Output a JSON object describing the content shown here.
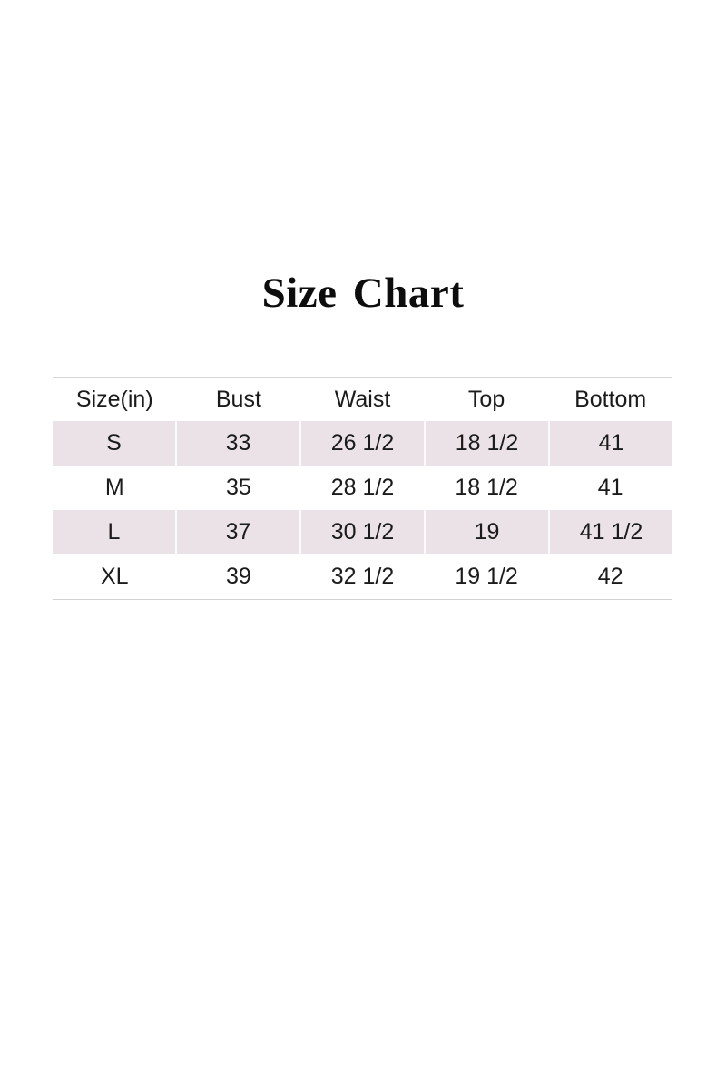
{
  "title": {
    "text": "Size Chart"
  },
  "chart_data": {
    "type": "table",
    "title": "Size Chart",
    "columns": [
      "Size(in)",
      "Bust",
      "Waist",
      "Top",
      "Bottom"
    ],
    "rows": [
      [
        "S",
        "33",
        "26 1/2",
        "18 1/2",
        "41"
      ],
      [
        "M",
        "35",
        "28 1/2",
        "18 1/2",
        "41"
      ],
      [
        "L",
        "37",
        "30 1/2",
        "19",
        "41 1/2"
      ],
      [
        "XL",
        "39",
        "32 1/2",
        "19 1/2",
        "42"
      ]
    ],
    "shaded_rows": [
      "S",
      "L"
    ],
    "layout": {
      "columns_equal_width": true,
      "header_background": "#ffffff"
    },
    "colors": {
      "shaded_row_background": "#eae2e6",
      "cell_separator": "#fbfafb",
      "table_border": "#d7d7d7",
      "text": "#1b1b1b",
      "title_text": "#0d0d0d",
      "page_background": "#ffffff"
    }
  }
}
